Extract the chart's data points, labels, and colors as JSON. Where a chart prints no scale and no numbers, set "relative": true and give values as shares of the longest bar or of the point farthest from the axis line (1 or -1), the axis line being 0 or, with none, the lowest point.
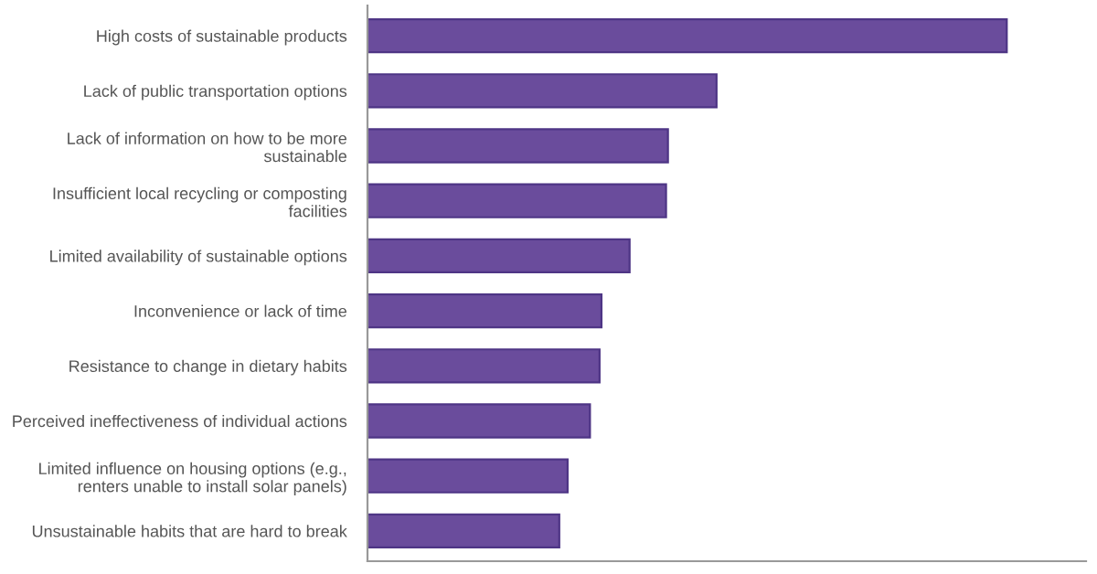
{
  "chart_data": {
    "type": "bar",
    "orientation": "horizontal",
    "relative": true,
    "color": "#6a4c9c",
    "grid": false,
    "legend": false,
    "categories": [
      "High costs of sustainable products",
      "Lack of public transportation options",
      "Lack of information on how to be more sustainable",
      "Insufficient local recycling or composting facilities",
      "Limited availability of sustainable options",
      "Inconvenience or lack of time",
      "Resistance to change in dietary habits",
      "Perceived ineffectiveness of individual actions",
      "Limited influence on housing options (e.g., renters unable to install solar panels)",
      "Unsustainable habits that are hard to break"
    ],
    "values": [
      1,
      0.546,
      0.47,
      0.467,
      0.41,
      0.366,
      0.363,
      0.348,
      0.313,
      0.3
    ]
  }
}
